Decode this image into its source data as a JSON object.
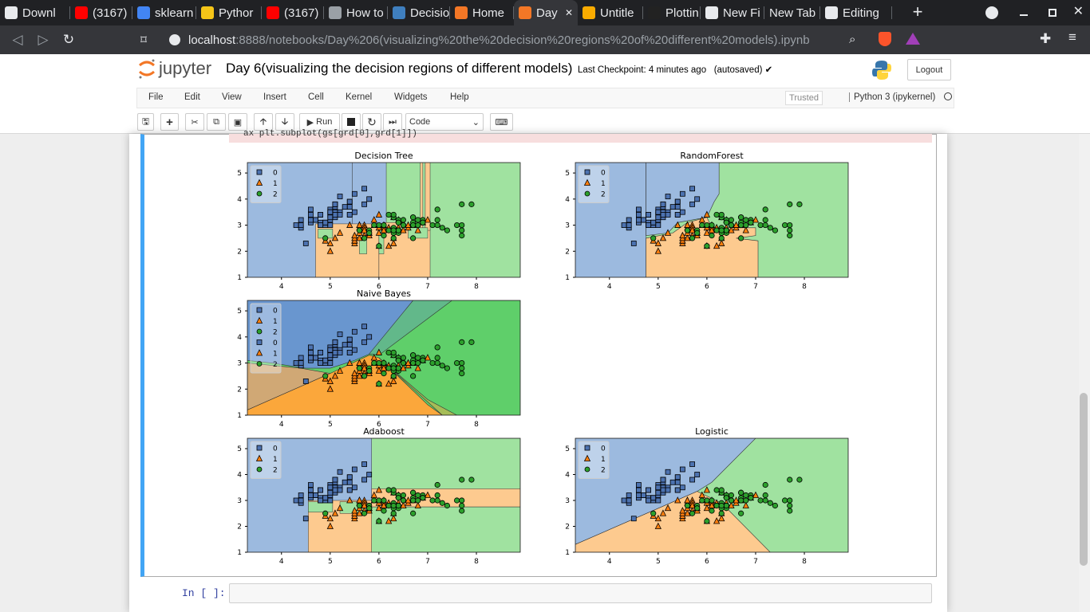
{
  "browser": {
    "tabs": [
      {
        "label": "Downl",
        "icon": "download-icon",
        "color": "#e8eaed"
      },
      {
        "label": "(3167)",
        "icon": "youtube-icon",
        "color": "#ff0000"
      },
      {
        "label": "sklearn",
        "icon": "google-icon",
        "color": "#4285f4"
      },
      {
        "label": "Pythor",
        "icon": "k-icon",
        "color": "#f5c518"
      },
      {
        "label": "(3167)",
        "icon": "youtube-icon",
        "color": "#ff0000"
      },
      {
        "label": "How to",
        "icon": "globe-icon",
        "color": "#9aa0a6"
      },
      {
        "label": "Decisio",
        "icon": "site-icon",
        "color": "#3f7fbf"
      },
      {
        "label": "Home",
        "icon": "jupyter-icon",
        "color": "#f37726"
      },
      {
        "label": "Day",
        "icon": "notebook-icon",
        "color": "#f37726",
        "active": true
      },
      {
        "label": "Untitle",
        "icon": "colab-icon",
        "color": "#f9ab00"
      },
      {
        "label": "Plottin",
        "icon": "feather-icon",
        "color": "#222"
      },
      {
        "label": "New Fi",
        "icon": "github-icon",
        "color": "#e8eaed"
      },
      {
        "label": "New Tab",
        "icon": "",
        "color": ""
      },
      {
        "label": "Editing",
        "icon": "github-icon",
        "color": "#e8eaed"
      }
    ],
    "url_host": "localhost",
    "url_path": ":8888/notebooks/Day%206(visualizing%20the%20decision%20regions%20of%20different%20models).ipynb"
  },
  "jupyter": {
    "logo_text": "jupyter",
    "title": "Day 6(visualizing the decision regions of different models)",
    "checkpoint": "Last Checkpoint: 4 minutes ago",
    "autosaved": "(autosaved) ✔",
    "logout": "Logout",
    "menu": [
      "File",
      "Edit",
      "View",
      "Insert",
      "Cell",
      "Kernel",
      "Widgets",
      "Help"
    ],
    "trusted": "Trusted",
    "kernel": "Python 3 (ipykernel)",
    "run_label": "Run",
    "cell_type": "Code",
    "code_partial": "ax plt.subplot(gs[grd[0],grd[1]])",
    "in_prompt": "In [ ]:"
  },
  "chart_data": [
    {
      "type": "scatter",
      "title": "Decision Tree",
      "xticks": [
        4,
        5,
        6,
        7,
        8
      ],
      "yticks": [
        1,
        2,
        3,
        4,
        5
      ],
      "legend": [
        "0",
        "1",
        "2"
      ],
      "colors": {
        "0": "#4c72b0",
        "1": "#ff7f0e",
        "2": "#2ca02c"
      }
    },
    {
      "type": "scatter",
      "title": "RandomForest",
      "xticks": [
        4,
        5,
        6,
        7,
        8
      ],
      "yticks": [
        1,
        2,
        3,
        4,
        5
      ],
      "legend": [
        "0",
        "1",
        "2"
      ]
    },
    {
      "type": "scatter",
      "title": "Naive Bayes",
      "xticks": [
        4,
        5,
        6,
        7,
        8
      ],
      "yticks": [
        1,
        2,
        3,
        4,
        5
      ],
      "legend": [
        "0",
        "1",
        "2",
        "0",
        "1",
        "2"
      ]
    },
    {
      "type": "scatter",
      "title": "Adaboost",
      "xticks": [
        4,
        5,
        6,
        7,
        8
      ],
      "yticks": [
        1,
        2,
        3,
        4,
        5
      ],
      "legend": [
        "0",
        "1",
        "2"
      ]
    },
    {
      "type": "scatter",
      "title": "Logistic",
      "xticks": [
        4,
        5,
        6,
        7,
        8
      ],
      "yticks": [
        1,
        2,
        3,
        4,
        5
      ],
      "legend": [
        "0",
        "1",
        "2"
      ]
    }
  ],
  "iris": {
    "setosa": [
      [
        5.1,
        3.5
      ],
      [
        4.9,
        3.0
      ],
      [
        4.7,
        3.2
      ],
      [
        4.6,
        3.1
      ],
      [
        5.0,
        3.6
      ],
      [
        5.4,
        3.9
      ],
      [
        4.6,
        3.4
      ],
      [
        5.0,
        3.4
      ],
      [
        4.4,
        2.9
      ],
      [
        4.9,
        3.1
      ],
      [
        5.4,
        3.7
      ],
      [
        4.8,
        3.4
      ],
      [
        4.8,
        3.0
      ],
      [
        4.3,
        3.0
      ],
      [
        5.8,
        4.0
      ],
      [
        5.7,
        4.4
      ],
      [
        5.4,
        3.9
      ],
      [
        5.1,
        3.5
      ],
      [
        5.7,
        3.8
      ],
      [
        5.1,
        3.8
      ],
      [
        5.4,
        3.4
      ],
      [
        5.1,
        3.7
      ],
      [
        4.6,
        3.6
      ],
      [
        5.1,
        3.3
      ],
      [
        4.8,
        3.4
      ],
      [
        5.0,
        3.0
      ],
      [
        5.0,
        3.4
      ],
      [
        5.2,
        3.5
      ],
      [
        5.2,
        3.4
      ],
      [
        4.7,
        3.2
      ],
      [
        4.8,
        3.1
      ],
      [
        5.4,
        3.4
      ],
      [
        5.2,
        4.1
      ],
      [
        5.5,
        4.2
      ],
      [
        4.9,
        3.1
      ],
      [
        5.0,
        3.2
      ],
      [
        5.5,
        3.5
      ],
      [
        4.4,
        3.0
      ],
      [
        5.1,
        3.4
      ],
      [
        5.0,
        3.5
      ],
      [
        4.5,
        2.3
      ],
      [
        4.4,
        3.2
      ],
      [
        5.0,
        3.5
      ],
      [
        5.1,
        3.8
      ],
      [
        4.8,
        3.0
      ],
      [
        5.1,
        3.8
      ],
      [
        4.6,
        3.2
      ],
      [
        5.3,
        3.7
      ],
      [
        5.0,
        3.3
      ]
    ],
    "versicolor": [
      [
        7.0,
        3.2
      ],
      [
        6.4,
        3.2
      ],
      [
        6.9,
        3.1
      ],
      [
        5.5,
        2.3
      ],
      [
        6.5,
        2.8
      ],
      [
        5.7,
        2.8
      ],
      [
        6.3,
        3.3
      ],
      [
        4.9,
        2.4
      ],
      [
        6.6,
        2.9
      ],
      [
        5.2,
        2.7
      ],
      [
        5.0,
        2.0
      ],
      [
        5.9,
        3.0
      ],
      [
        6.0,
        2.2
      ],
      [
        6.1,
        2.9
      ],
      [
        5.6,
        2.9
      ],
      [
        6.7,
        3.1
      ],
      [
        5.6,
        3.0
      ],
      [
        5.8,
        2.7
      ],
      [
        6.2,
        2.2
      ],
      [
        5.6,
        2.5
      ],
      [
        5.9,
        3.2
      ],
      [
        6.1,
        2.8
      ],
      [
        6.3,
        2.5
      ],
      [
        6.1,
        2.8
      ],
      [
        6.4,
        2.9
      ],
      [
        6.6,
        3.0
      ],
      [
        6.8,
        2.8
      ],
      [
        6.7,
        3.0
      ],
      [
        6.0,
        2.9
      ],
      [
        5.7,
        2.6
      ],
      [
        5.5,
        2.4
      ],
      [
        5.5,
        2.4
      ],
      [
        5.8,
        2.7
      ],
      [
        6.0,
        2.7
      ],
      [
        5.4,
        3.0
      ],
      [
        6.0,
        3.4
      ],
      [
        6.7,
        3.1
      ],
      [
        6.3,
        2.3
      ],
      [
        5.6,
        3.0
      ],
      [
        5.5,
        2.5
      ],
      [
        5.5,
        2.6
      ],
      [
        6.1,
        3.0
      ],
      [
        5.8,
        2.6
      ],
      [
        5.0,
        2.3
      ],
      [
        5.6,
        2.7
      ],
      [
        5.7,
        3.0
      ],
      [
        5.7,
        2.9
      ],
      [
        6.2,
        2.9
      ],
      [
        5.1,
        2.5
      ],
      [
        5.7,
        2.8
      ]
    ],
    "virginica": [
      [
        6.3,
        3.3
      ],
      [
        5.8,
        2.7
      ],
      [
        7.1,
        3.0
      ],
      [
        6.3,
        2.9
      ],
      [
        6.5,
        3.0
      ],
      [
        7.6,
        3.0
      ],
      [
        4.9,
        2.5
      ],
      [
        7.3,
        2.9
      ],
      [
        6.7,
        2.5
      ],
      [
        7.2,
        3.6
      ],
      [
        6.5,
        3.2
      ],
      [
        6.4,
        2.7
      ],
      [
        6.8,
        3.0
      ],
      [
        5.7,
        2.5
      ],
      [
        5.8,
        2.8
      ],
      [
        6.4,
        3.2
      ],
      [
        6.5,
        3.0
      ],
      [
        7.7,
        3.8
      ],
      [
        7.7,
        2.6
      ],
      [
        6.0,
        2.2
      ],
      [
        6.9,
        3.2
      ],
      [
        5.6,
        2.8
      ],
      [
        7.7,
        2.8
      ],
      [
        6.3,
        2.7
      ],
      [
        6.7,
        3.3
      ],
      [
        7.2,
        3.2
      ],
      [
        6.2,
        2.8
      ],
      [
        6.1,
        3.0
      ],
      [
        6.4,
        2.8
      ],
      [
        7.2,
        3.0
      ],
      [
        7.4,
        2.8
      ],
      [
        7.9,
        3.8
      ],
      [
        6.4,
        2.8
      ],
      [
        6.3,
        2.8
      ],
      [
        6.1,
        2.6
      ],
      [
        7.7,
        3.0
      ],
      [
        6.3,
        3.4
      ],
      [
        6.4,
        3.1
      ],
      [
        6.0,
        3.0
      ],
      [
        6.9,
        3.1
      ],
      [
        6.7,
        3.1
      ],
      [
        6.9,
        3.1
      ],
      [
        5.8,
        2.7
      ],
      [
        6.8,
        3.2
      ],
      [
        6.7,
        3.3
      ],
      [
        6.7,
        3.0
      ],
      [
        6.3,
        2.5
      ],
      [
        6.5,
        3.0
      ],
      [
        6.2,
        3.4
      ],
      [
        5.9,
        3.0
      ]
    ]
  }
}
